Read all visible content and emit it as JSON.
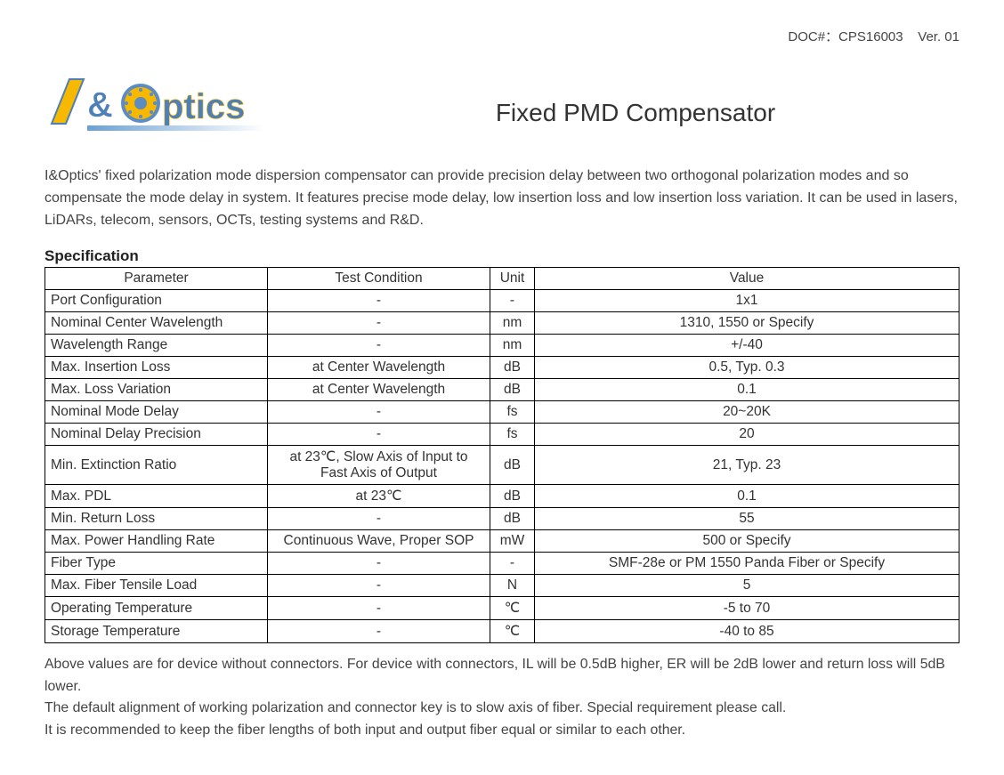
{
  "header": {
    "doc_label": "DOC#：CPS16003",
    "version": "Ver. 01"
  },
  "logo": {
    "text_i": "I",
    "text_amp": "&",
    "text_ptics": "ptics",
    "slash_color": "#f6b800",
    "i_color": "#4d7fb8",
    "amp_color": "#4d7fb8",
    "o_outer": "#f6b800",
    "o_ring": "#5e8bc0",
    "o_center": "#f6b800",
    "ptics_color": "#4d7fb8",
    "underline_gradient_from": "#6aa0d6",
    "underline_gradient_to": "#ffffff"
  },
  "title": "Fixed PMD Compensator",
  "intro": "I&Optics' fixed polarization mode dispersion compensator can provide precision delay between two orthogonal polarization modes and so compensate the mode delay in system. It features precise mode delay, low insertion loss and low insertion loss variation. It can be used in lasers, LiDARs, telecom, sensors, OCTs, testing systems and R&D.",
  "spec_heading": "Specification",
  "table": {
    "columns": [
      "Parameter",
      "Test Condition",
      "Unit",
      "Value"
    ],
    "rows": [
      {
        "param": "Port Configuration",
        "test": "-",
        "unit": "-",
        "value": "1x1"
      },
      {
        "param": "Nominal Center Wavelength",
        "test": "-",
        "unit": "nm",
        "value": "1310, 1550 or Specify"
      },
      {
        "param": "Wavelength Range",
        "test": "-",
        "unit": "nm",
        "value": "+/-40"
      },
      {
        "param": "Max. Insertion Loss",
        "test": "at Center Wavelength",
        "unit": "dB",
        "value": "0.5, Typ. 0.3"
      },
      {
        "param": "Max. Loss Variation",
        "test": "at Center Wavelength",
        "unit": "dB",
        "value": "0.1"
      },
      {
        "param": "Nominal Mode Delay",
        "test": "-",
        "unit": "fs",
        "value": "20~20K"
      },
      {
        "param": "Nominal Delay Precision",
        "test": "-",
        "unit": "fs",
        "value": "20"
      },
      {
        "param": "Min. Extinction Ratio",
        "test": "at 23℃, Slow Axis of Input to\nFast Axis of Output",
        "unit": "dB",
        "value": "21, Typ. 23"
      },
      {
        "param": "Max. PDL",
        "test": "at 23℃",
        "unit": "dB",
        "value": "0.1"
      },
      {
        "param": "Min. Return Loss",
        "test": "-",
        "unit": "dB",
        "value": "55"
      },
      {
        "param": "Max. Power Handling Rate",
        "test": "Continuous Wave, Proper SOP",
        "unit": "mW",
        "value": "500 or Specify"
      },
      {
        "param": "Fiber Type",
        "test": "-",
        "unit": "-",
        "value": "SMF-28e or PM 1550 Panda Fiber or Specify"
      },
      {
        "param": "Max. Fiber Tensile Load",
        "test": "-",
        "unit": "N",
        "value": "5"
      },
      {
        "param": "Operating Temperature",
        "test": "-",
        "unit": "℃",
        "value": "-5 to 70"
      },
      {
        "param": "Storage Temperature",
        "test": "-",
        "unit": "℃",
        "value": "-40 to 85"
      }
    ]
  },
  "notes": [
    "Above values are for device without connectors. For device with connectors, IL will be 0.5dB higher, ER will be 2dB lower and return loss will 5dB lower.",
    "The default alignment of working polarization and connector key is to slow axis of fiber. Special requirement please call.",
    "It is recommended to keep the fiber lengths of both input and output fiber equal or similar to each other."
  ]
}
